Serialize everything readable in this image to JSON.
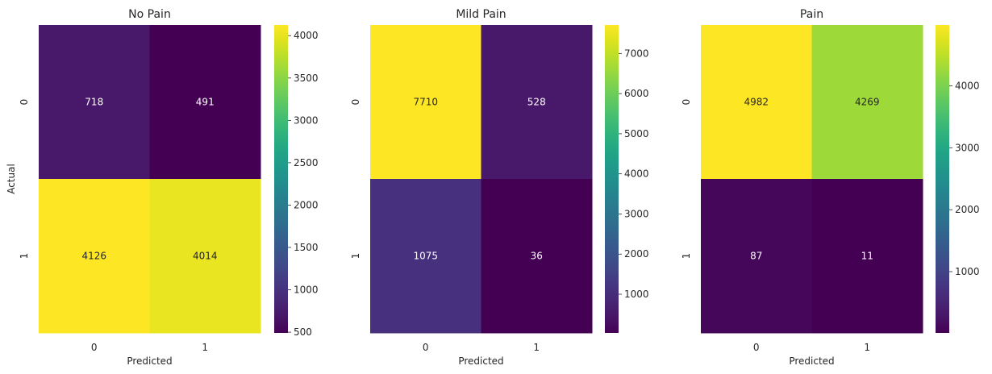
{
  "chart_data": [
    {
      "type": "heatmap",
      "title": "No Pain",
      "xlabel": "Predicted",
      "ylabel": "Actual",
      "x_categories": [
        "0",
        "1"
      ],
      "y_categories": [
        "0",
        "1"
      ],
      "values": [
        [
          718,
          491
        ],
        [
          4126,
          4014
        ]
      ],
      "colorbar": {
        "range": [
          491,
          4126
        ],
        "ticks": [
          500,
          1000,
          1500,
          2000,
          2500,
          3000,
          3500,
          4000
        ]
      },
      "colormap": "viridis"
    },
    {
      "type": "heatmap",
      "title": "Mild Pain",
      "xlabel": "Predicted",
      "ylabel": "",
      "x_categories": [
        "0",
        "1"
      ],
      "y_categories": [
        "0",
        "1"
      ],
      "values": [
        [
          7710,
          528
        ],
        [
          1075,
          36
        ]
      ],
      "colorbar": {
        "range": [
          36,
          7710
        ],
        "ticks": [
          1000,
          2000,
          3000,
          4000,
          5000,
          6000,
          7000
        ]
      },
      "colormap": "viridis"
    },
    {
      "type": "heatmap",
      "title": "Pain",
      "xlabel": "Predicted",
      "ylabel": "",
      "x_categories": [
        "0",
        "1"
      ],
      "y_categories": [
        "0",
        "1"
      ],
      "values": [
        [
          4982,
          4269
        ],
        [
          87,
          11
        ]
      ],
      "colorbar": {
        "range": [
          11,
          4982
        ],
        "ticks": [
          1000,
          2000,
          3000,
          4000
        ]
      },
      "colormap": "viridis"
    }
  ]
}
